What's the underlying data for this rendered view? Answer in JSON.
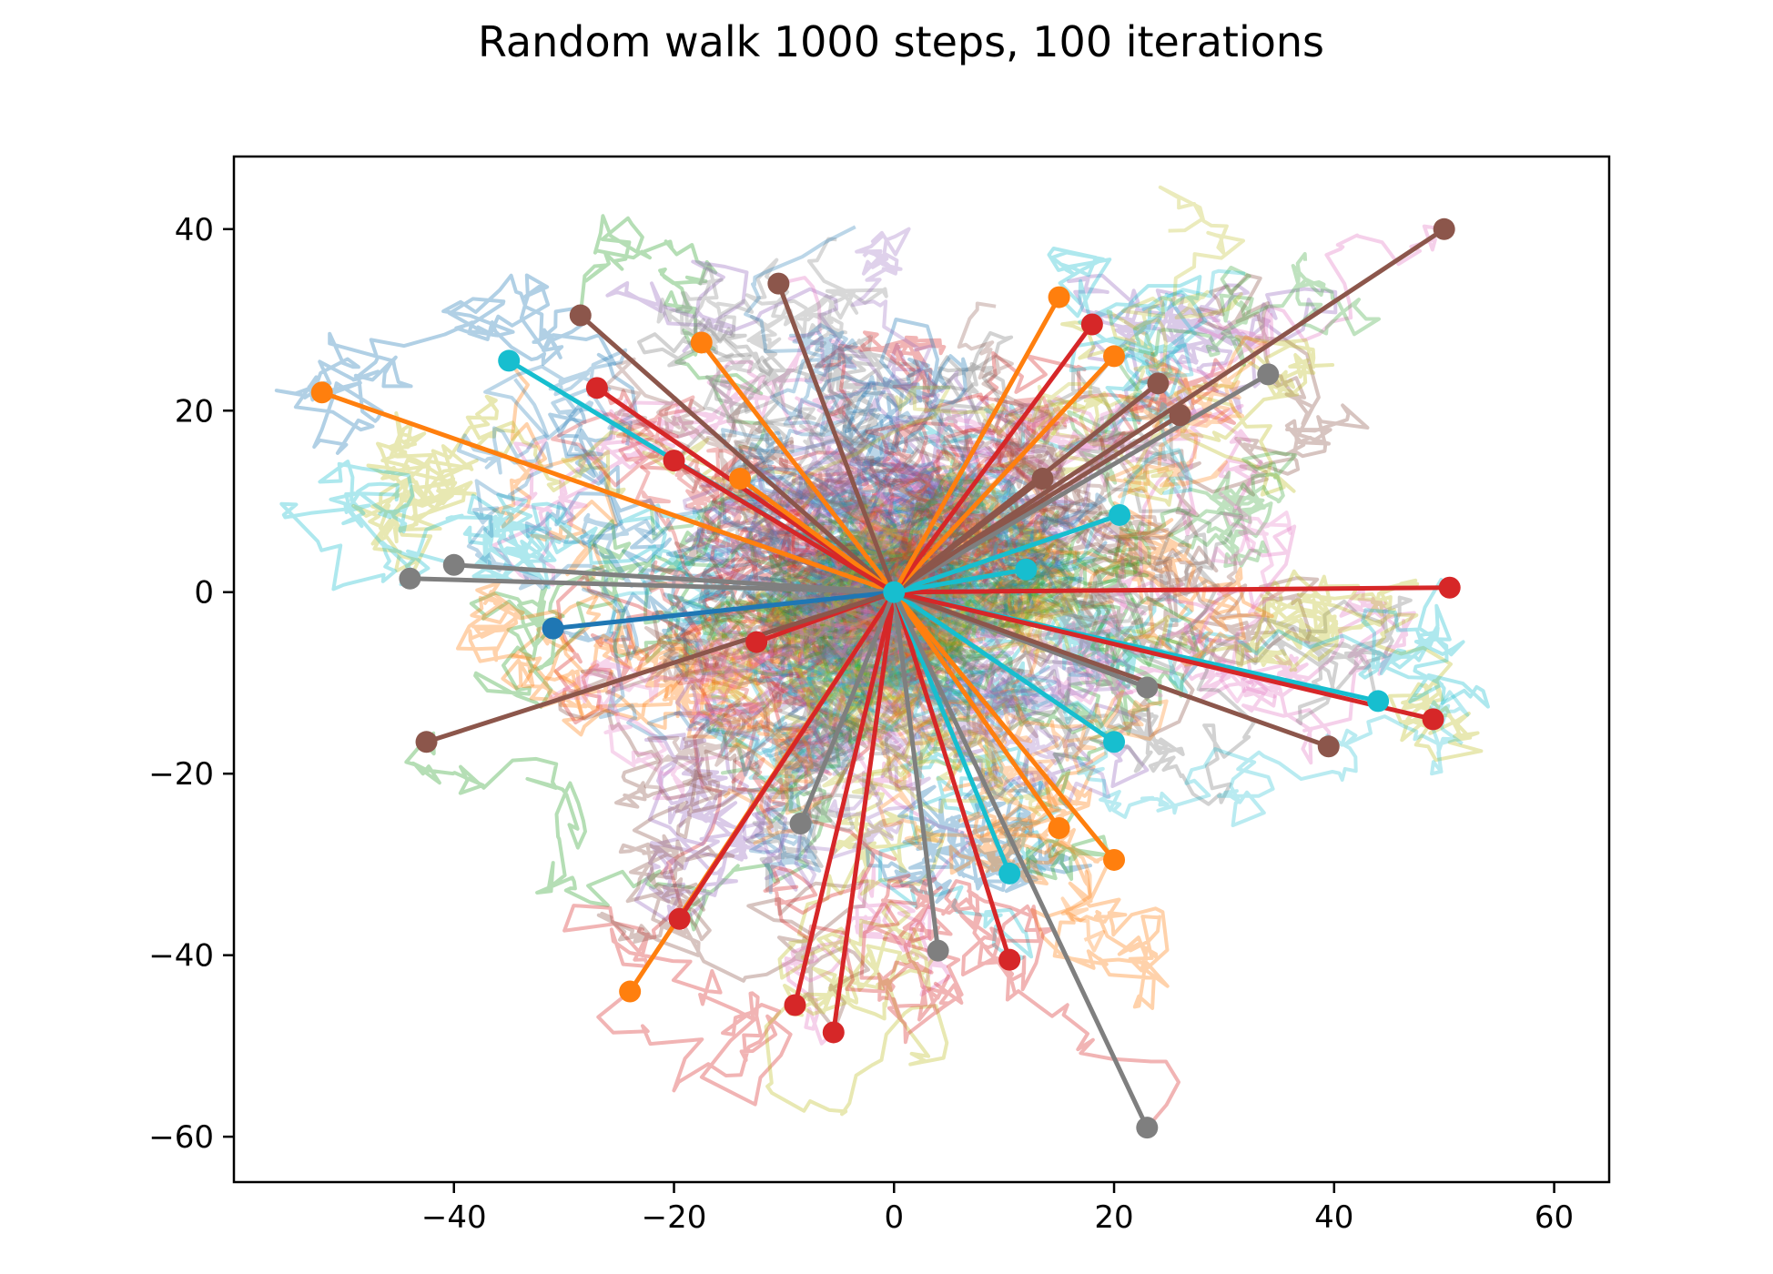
{
  "chart_data": {
    "type": "line",
    "title": "Random walk 1000 steps, 100 iterations",
    "xlabel": "",
    "ylabel": "",
    "xlim": [
      -60,
      65
    ],
    "ylim": [
      -65,
      48
    ],
    "xticks": [
      -40,
      -20,
      0,
      20,
      40,
      60
    ],
    "yticks": [
      40,
      20,
      0,
      -20,
      -40,
      -60
    ],
    "xtick_labels": [
      "−40",
      "−20",
      "0",
      "20",
      "40",
      "60"
    ],
    "ytick_labels": [
      "40",
      "20",
      "0",
      "−20",
      "−40",
      "−60"
    ],
    "grid": false,
    "legend": "none",
    "origin": [
      0,
      0
    ],
    "palette": [
      "#1f77b4",
      "#ff7f0e",
      "#2ca02c",
      "#d62728",
      "#9467bd",
      "#8c564b",
      "#e377c2",
      "#7f7f7f",
      "#bcbd22",
      "#17becf"
    ],
    "endpoints": [
      {
        "x": -52,
        "y": 22,
        "color": "#ff7f0e"
      },
      {
        "x": -35,
        "y": 25.5,
        "color": "#17becf"
      },
      {
        "x": -28.5,
        "y": 30.5,
        "color": "#8c564b"
      },
      {
        "x": -27,
        "y": 22.5,
        "color": "#d62728"
      },
      {
        "x": -17.5,
        "y": 27.5,
        "color": "#ff7f0e"
      },
      {
        "x": -14,
        "y": 12.5,
        "color": "#ff7f0e"
      },
      {
        "x": -10.5,
        "y": 34,
        "color": "#8c564b"
      },
      {
        "x": -20,
        "y": 14.5,
        "color": "#d62728"
      },
      {
        "x": -44,
        "y": 1.5,
        "color": "#7f7f7f"
      },
      {
        "x": -40,
        "y": 3,
        "color": "#7f7f7f"
      },
      {
        "x": -31,
        "y": -4,
        "color": "#1f77b4"
      },
      {
        "x": -12.5,
        "y": -5.5,
        "color": "#d62728"
      },
      {
        "x": -42.5,
        "y": -16.5,
        "color": "#8c564b"
      },
      {
        "x": -24,
        "y": -44,
        "color": "#ff7f0e"
      },
      {
        "x": -19.5,
        "y": -36,
        "color": "#d62728"
      },
      {
        "x": -9,
        "y": -45.5,
        "color": "#d62728"
      },
      {
        "x": -5.5,
        "y": -48.5,
        "color": "#d62728"
      },
      {
        "x": -8.5,
        "y": -25.5,
        "color": "#7f7f7f"
      },
      {
        "x": 4,
        "y": -39.5,
        "color": "#7f7f7f"
      },
      {
        "x": 10.5,
        "y": -40.5,
        "color": "#d62728"
      },
      {
        "x": 10.5,
        "y": -31,
        "color": "#17becf"
      },
      {
        "x": 15,
        "y": -26,
        "color": "#ff7f0e"
      },
      {
        "x": 20,
        "y": -29.5,
        "color": "#ff7f0e"
      },
      {
        "x": 23,
        "y": -59,
        "color": "#7f7f7f"
      },
      {
        "x": 20,
        "y": -16.5,
        "color": "#17becf"
      },
      {
        "x": 23,
        "y": -10.5,
        "color": "#7f7f7f"
      },
      {
        "x": 39.5,
        "y": -17,
        "color": "#8c564b"
      },
      {
        "x": 44,
        "y": -12,
        "color": "#17becf"
      },
      {
        "x": 49,
        "y": -14,
        "color": "#d62728"
      },
      {
        "x": 50.5,
        "y": 0.5,
        "color": "#d62728"
      },
      {
        "x": 12,
        "y": 2.5,
        "color": "#17becf"
      },
      {
        "x": 20.5,
        "y": 8.5,
        "color": "#17becf"
      },
      {
        "x": 13.5,
        "y": 12.5,
        "color": "#8c564b"
      },
      {
        "x": 26,
        "y": 19.5,
        "color": "#8c564b"
      },
      {
        "x": 24,
        "y": 23,
        "color": "#8c564b"
      },
      {
        "x": 34,
        "y": 24,
        "color": "#7f7f7f"
      },
      {
        "x": 50,
        "y": 40,
        "color": "#8c564b"
      },
      {
        "x": 20,
        "y": 26,
        "color": "#ff7f0e"
      },
      {
        "x": 18,
        "y": 29.5,
        "color": "#d62728"
      },
      {
        "x": 15,
        "y": 32.5,
        "color": "#ff7f0e"
      },
      {
        "x": 0,
        "y": 0,
        "color": "#17becf"
      }
    ]
  }
}
